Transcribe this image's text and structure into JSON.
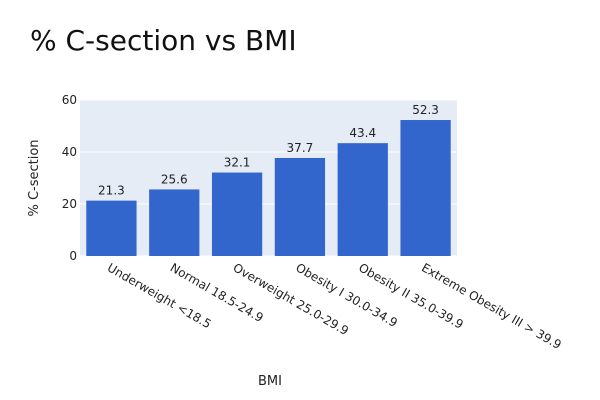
{
  "chart_data": {
    "type": "bar",
    "title": "% C-section vs BMI",
    "xlabel": "BMI",
    "ylabel": "% C-section",
    "categories": [
      "Underweight <18.5",
      "Normal 18.5-24.9",
      "Overweight 25.0-29.9",
      "Obesity I 30.0-34.9",
      "Obesity II 35.0-39.9",
      "Extreme Obesity III > 39.9"
    ],
    "values": [
      21.3,
      25.6,
      32.1,
      37.7,
      43.4,
      52.3
    ],
    "value_labels": [
      "21.3",
      "25.6",
      "32.1",
      "37.7",
      "43.4",
      "52.3"
    ],
    "ylim": [
      0,
      60
    ],
    "yticks": [
      0,
      20,
      40,
      60
    ],
    "ytick_labels": [
      "0",
      "20",
      "40",
      "60"
    ],
    "grid": true,
    "legend": "none",
    "colors": {
      "bar": "#3366cc",
      "plot_bg": "#e5ecf6",
      "grid": "#ffffff"
    }
  }
}
